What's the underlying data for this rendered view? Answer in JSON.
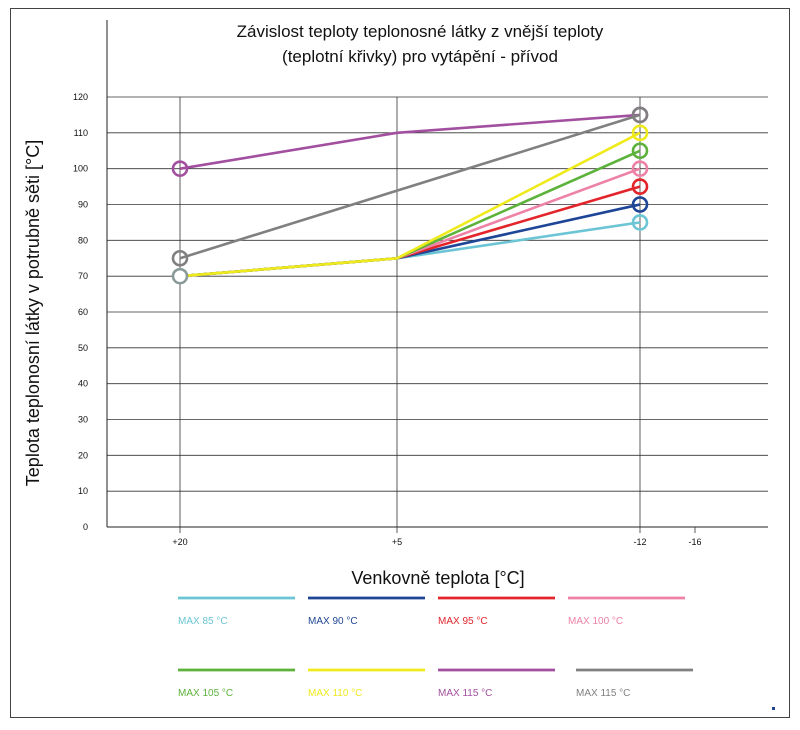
{
  "chart_data": {
    "type": "line",
    "title": [
      "Závislost teploty teplonosné látky z vnější teploty",
      "(teplotní křivky) pro vytápění - přívod"
    ],
    "xlabel": "Venkovně teplota [°C]",
    "ylabel": "Teplota teplonosní látky v potrubně sěti [°C]",
    "x_ticks": [
      "+20",
      "+5",
      "-12",
      "-16"
    ],
    "x_tick_values": [
      20,
      5,
      -12,
      -16
    ],
    "x_range": [
      25,
      -20
    ],
    "ylim": [
      0,
      120
    ],
    "y_ticks": [
      "0",
      "10",
      "20",
      "30",
      "40",
      "50",
      "60",
      "70",
      "80",
      "90",
      "100",
      "110",
      "120"
    ],
    "grid": true,
    "legend_position": "bottom",
    "series": [
      {
        "name": "MAX 85 °C",
        "color": "#6cc5d5",
        "x": [
          20,
          5,
          -12
        ],
        "y": [
          70,
          75,
          85
        ],
        "markers": [
          false,
          false,
          true
        ]
      },
      {
        "name": "MAX 90 °C",
        "color": "#1f4596",
        "x": [
          20,
          5,
          -12
        ],
        "y": [
          70,
          75,
          90
        ],
        "markers": [
          false,
          false,
          true
        ]
      },
      {
        "name": "MAX 95 °C",
        "color": "#e2252b",
        "x": [
          20,
          5,
          -12
        ],
        "y": [
          70,
          75,
          95
        ],
        "markers": [
          false,
          false,
          true
        ]
      },
      {
        "name": "MAX 100 °C",
        "color": "#ee82a6",
        "x": [
          20,
          5,
          -12
        ],
        "y": [
          70,
          75,
          100
        ],
        "markers": [
          false,
          false,
          true
        ]
      },
      {
        "name": "MAX 105 °C",
        "color": "#5cb23a",
        "x": [
          20,
          5,
          -12
        ],
        "y": [
          70,
          75,
          105
        ],
        "markers": [
          false,
          false,
          true
        ]
      },
      {
        "name": "MAX 110 °C",
        "color": "#eeea1c",
        "x": [
          20,
          5,
          -12
        ],
        "y": [
          70,
          75,
          110
        ],
        "markers": [
          false,
          false,
          true
        ]
      },
      {
        "name": "MAX 115 °C",
        "color": "#a24f9f",
        "x": [
          20,
          5,
          -12
        ],
        "y": [
          100,
          110,
          115
        ],
        "markers": [
          true,
          false,
          true
        ]
      },
      {
        "name": "MAX 115 °C",
        "color": "#808080",
        "x": [
          20,
          -12
        ],
        "y": [
          75,
          115
        ],
        "markers": [
          true,
          true
        ]
      }
    ],
    "shared_start_marker": {
      "x": 20,
      "y": 70,
      "color": "#8a9a9a"
    }
  }
}
